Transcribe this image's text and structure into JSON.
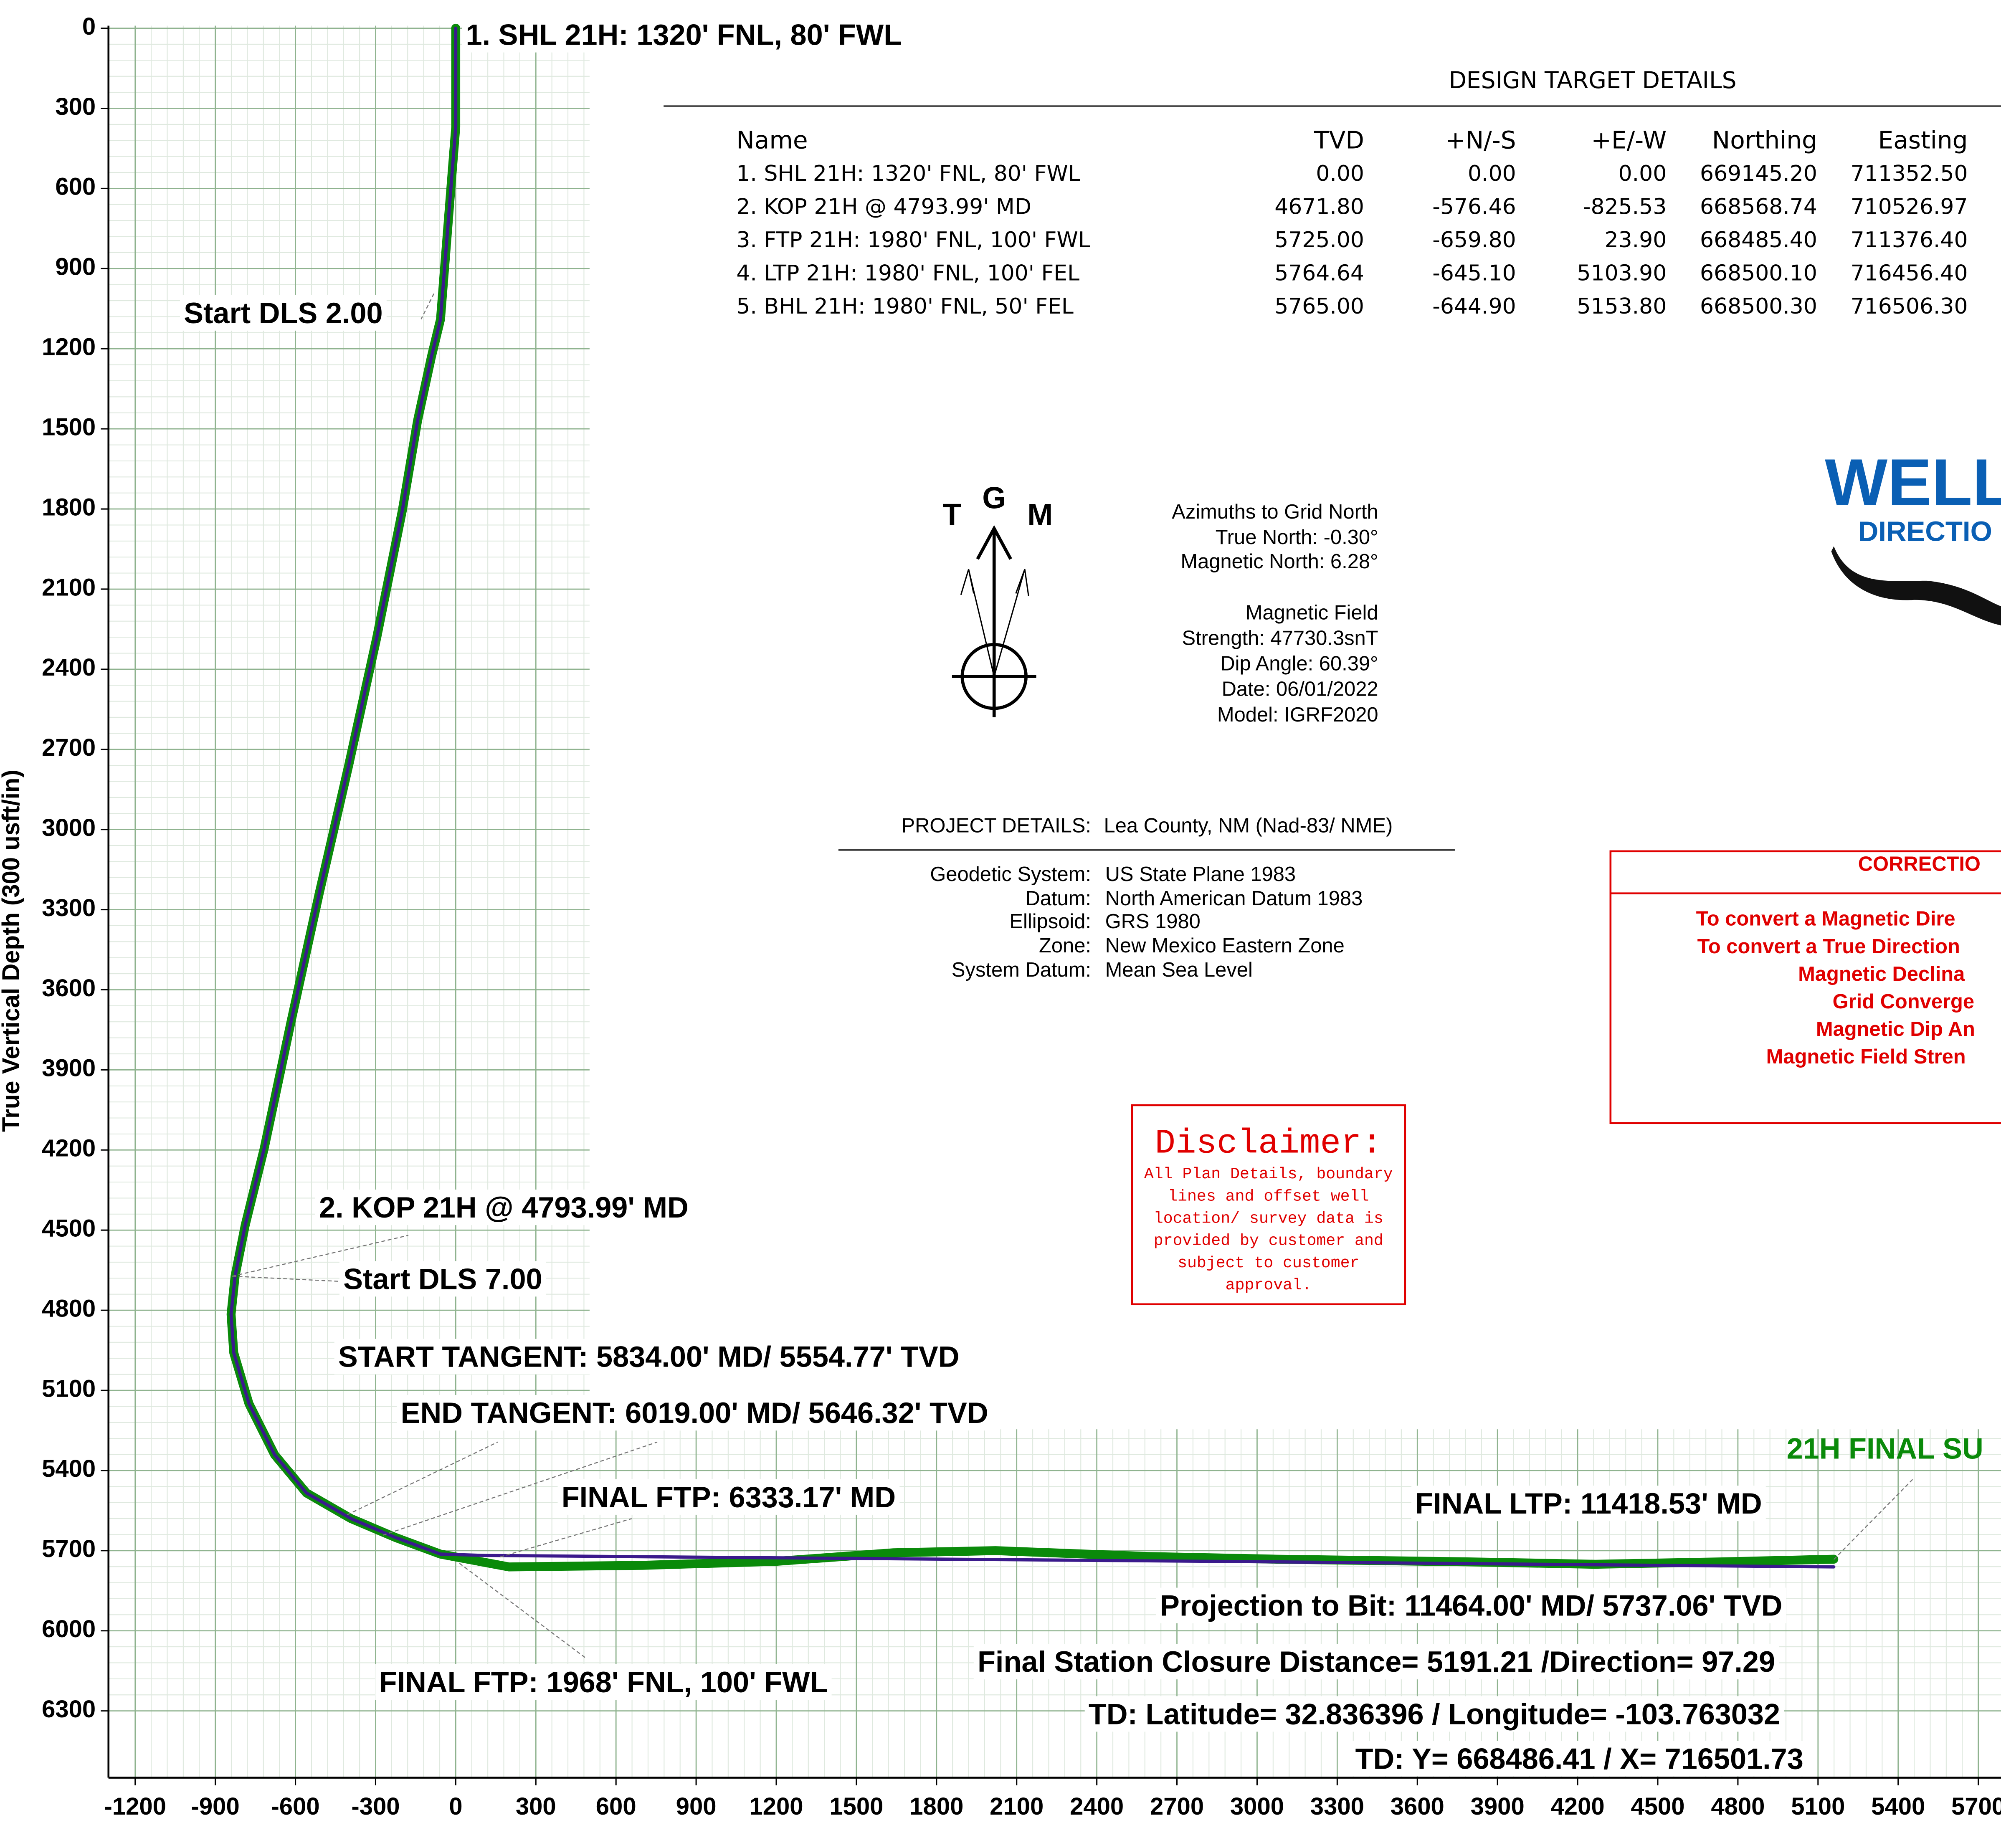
{
  "chart_data": {
    "type": "line",
    "y_label": "True Vertical Depth (300 usft/in)",
    "xlim": [
      -1300,
      5785
    ],
    "ylim": [
      0,
      6550
    ],
    "y_inverted": true,
    "grid": true,
    "xticks": [
      -1200,
      -900,
      -600,
      -300,
      0,
      300,
      600,
      900,
      1200,
      1500,
      1800,
      2100,
      2400,
      2700,
      3000,
      3300,
      3600,
      3900,
      4200,
      4500,
      4800,
      5100,
      5400,
      5700
    ],
    "yticks": [
      0,
      300,
      600,
      900,
      1200,
      1500,
      1800,
      2100,
      2400,
      2700,
      3000,
      3300,
      3600,
      3900,
      4200,
      4500,
      4800,
      5100,
      5400,
      5700,
      6000,
      6300
    ],
    "series": [
      {
        "color": "#0a8a0a",
        "x": [
          0,
          0,
          -57,
          -91,
          -143,
          -200,
          -296,
          -401,
          -511,
          -616,
          -717,
          -788,
          -826,
          -841,
          -831,
          -774,
          -678,
          -559,
          -392,
          -225,
          -57,
          200,
          700,
          1200,
          1639,
          2021,
          2594,
          3072,
          3788,
          4266,
          4743,
          5159
        ],
        "values": [
          0,
          370,
          1090,
          1230,
          1470,
          1806,
          2283,
          2761,
          3239,
          3717,
          4194,
          4481,
          4672,
          4815,
          4959,
          5150,
          5341,
          5484,
          5580,
          5651,
          5713,
          5761,
          5755,
          5740,
          5708,
          5700,
          5722,
          5732,
          5742,
          5751,
          5742,
          5732
        ]
      },
      {
        "color": "#3a1a8c",
        "x": [
          0,
          0,
          -57,
          -91,
          -143,
          -200,
          -296,
          -401,
          -511,
          -616,
          -717,
          -788,
          -826,
          -841,
          -831,
          -774,
          -678,
          -559,
          -392,
          -225,
          -57,
          110,
          3072,
          5159
        ],
        "values": [
          0,
          370,
          1090,
          1230,
          1470,
          1806,
          2283,
          2761,
          3239,
          3717,
          4194,
          4481,
          4672,
          4815,
          4959,
          5150,
          5341,
          5484,
          5580,
          5651,
          5713,
          5718,
          5742,
          5761
        ]
      }
    ],
    "annotations": [
      "1. SHL 21H: 1320' FNL, 80' FWL",
      "Start DLS 2.00",
      "2. KOP 21H @ 4793.99' MD",
      "Start DLS 7.00",
      "START TANGENT: 5834.00' MD/ 5554.77' TVD",
      "END TANGENT: 6019.00' MD/ 5646.32' TVD",
      "FINAL FTP: 6333.17' MD",
      "FINAL LTP: 11418.53' MD",
      "Projection to Bit: 11464.00' MD/ 5737.06' TVD",
      "Final Station Closure Distance= 5191.21 /Direction= 97.29",
      "TD: Latitude= 32.836396 / Longitude= -103.763032",
      "TD: Y= 668486.41 / X= 716501.73",
      "FINAL FTP: 1968' FNL, 100' FWL"
    ],
    "well_label": "21H FINAL SU"
  },
  "design_targets": {
    "title": "DESIGN TARGET DETAILS",
    "columns": [
      "Name",
      "TVD",
      "+N/-S",
      "+E/-W",
      "Northing",
      "Easting"
    ],
    "rows": [
      [
        "1. SHL 21H: 1320' FNL, 80' FWL",
        "0.00",
        "0.00",
        "0.00",
        "669145.20",
        "711352.50"
      ],
      [
        "2. KOP 21H @ 4793.99' MD",
        "4671.80",
        "-576.46",
        "-825.53",
        "668568.74",
        "710526.97"
      ],
      [
        "3. FTP 21H: 1980' FNL, 100' FWL",
        "5725.00",
        "-659.80",
        "23.90",
        "668485.40",
        "711376.40"
      ],
      [
        "4. LTP 21H: 1980' FNL, 100' FEL",
        "5764.64",
        "-645.10",
        "5103.90",
        "668500.10",
        "716456.40"
      ],
      [
        "5. BHL 21H: 1980' FNL, 50' FEL",
        "5765.00",
        "-644.90",
        "5153.80",
        "668500.30",
        "716506.30"
      ]
    ]
  },
  "compass": {
    "letters": [
      "T",
      "G",
      "M"
    ],
    "lines": [
      "Azimuths to Grid North",
      "True North: -0.30°",
      "Magnetic North: 6.28°",
      "Magnetic Field",
      "Strength: 47730.3snT",
      "Dip Angle: 60.39°",
      "Date: 06/01/2022",
      "Model: IGRF2020"
    ]
  },
  "project": {
    "title": "PROJECT  DETAILS:",
    "location": "Lea County, NM (Nad-83/ NME)",
    "rows": [
      [
        "Geodetic System:",
        "US State Plane 1983"
      ],
      [
        "Datum:",
        "North American Datum 1983"
      ],
      [
        "Ellipsoid:",
        "GRS 1980"
      ],
      [
        "Zone:",
        "New Mexico Eastern Zone"
      ],
      [
        "System Datum:",
        "Mean Sea Level"
      ]
    ]
  },
  "disclaimer": {
    "title": "Disclaimer:",
    "lines": [
      "All Plan Details, boundary",
      "lines and offset well",
      "location/ survey data is",
      "provided by customer and",
      "subject to customer",
      "approval."
    ]
  },
  "corrections": {
    "title": "CORRECTIO",
    "lines": [
      "To convert a Magnetic Dire",
      "To convert a True Direction",
      "Magnetic Declina",
      "Grid Converge",
      "Magnetic Dip An",
      "Magnetic Field Stren"
    ]
  },
  "logo": {
    "name": "WELL",
    "sub": "DIRECTIO"
  }
}
